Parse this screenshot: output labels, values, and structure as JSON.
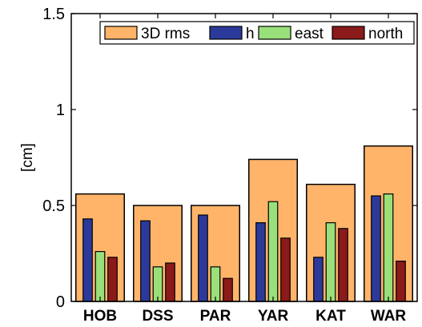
{
  "chart_data": {
    "type": "bar",
    "title": "",
    "xlabel": "",
    "ylabel": "[cm]",
    "ylim": [
      0,
      1.5
    ],
    "yticks": [
      {
        "value": 0,
        "label": "0"
      },
      {
        "value": 0.5,
        "label": "0.5"
      },
      {
        "value": 1,
        "label": "1"
      },
      {
        "value": 1.5,
        "label": "1.5"
      }
    ],
    "grid": false,
    "legend_position": "top-right",
    "categories": [
      "HOB",
      "DSS",
      "PAR",
      "YAR",
      "KAT",
      "WAR"
    ],
    "series": [
      {
        "name": "3D rms",
        "color": "#FFB46A",
        "values": [
          0.56,
          0.5,
          0.5,
          0.74,
          0.61,
          0.81
        ]
      },
      {
        "name": "h",
        "color": "#2B3A9A",
        "values": [
          0.43,
          0.42,
          0.45,
          0.41,
          0.23,
          0.55
        ]
      },
      {
        "name": "east",
        "color": "#99E07A",
        "values": [
          0.26,
          0.18,
          0.18,
          0.52,
          0.41,
          0.56
        ]
      },
      {
        "name": "north",
        "color": "#8B1A1A",
        "values": [
          0.23,
          0.2,
          0.12,
          0.33,
          0.38,
          0.21
        ]
      }
    ]
  }
}
